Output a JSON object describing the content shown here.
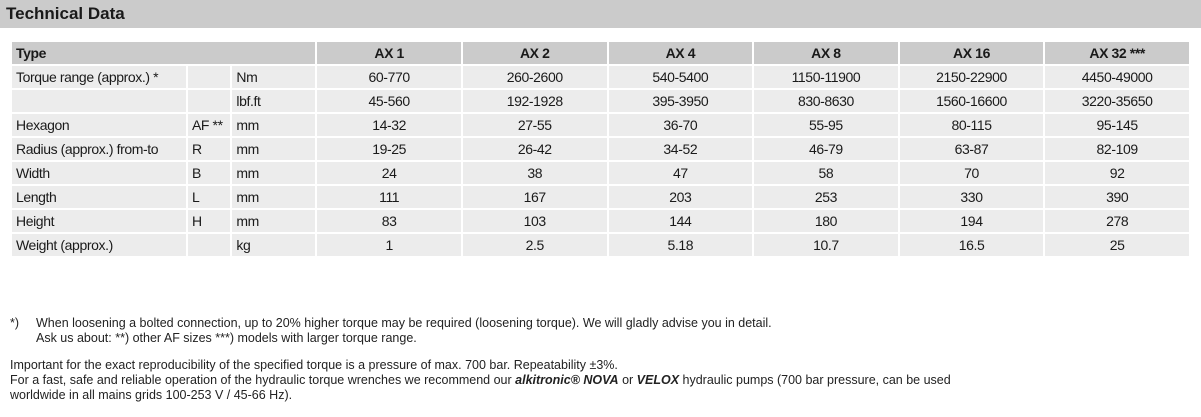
{
  "title": "Technical Data",
  "table": {
    "header": {
      "type": "Type",
      "models": [
        "AX 1",
        "AX 2",
        "AX 4",
        "AX 8",
        "AX 16",
        "AX 32 ***"
      ]
    },
    "rows": [
      {
        "label": "Torque range (approx.) *",
        "sym": "",
        "unit": "Nm",
        "values": [
          "60-770",
          "260-2600",
          "540-5400",
          "1150-11900",
          "2150-22900",
          "4450-49000"
        ]
      },
      {
        "label": "",
        "sym": "",
        "unit": "lbf.ft",
        "values": [
          "45-560",
          "192-1928",
          "395-3950",
          "830-8630",
          "1560-16600",
          "3220-35650"
        ]
      },
      {
        "label": "Hexagon",
        "sym": "AF **",
        "unit": "mm",
        "values": [
          "14-32",
          "27-55",
          "36-70",
          "55-95",
          "80-115",
          "95-145"
        ]
      },
      {
        "label": "Radius (approx.) from-to",
        "sym": "R",
        "unit": "mm",
        "values": [
          "19-25",
          "26-42",
          "34-52",
          "46-79",
          "63-87",
          "82-109"
        ]
      },
      {
        "label": "Width",
        "sym": "B",
        "unit": "mm",
        "values": [
          "24",
          "38",
          "47",
          "58",
          "70",
          "92"
        ]
      },
      {
        "label": "Length",
        "sym": "L",
        "unit": "mm",
        "values": [
          "111",
          "167",
          "203",
          "253",
          "330",
          "390"
        ]
      },
      {
        "label": "Height",
        "sym": "H",
        "unit": "mm",
        "values": [
          "83",
          "103",
          "144",
          "180",
          "194",
          "278"
        ]
      },
      {
        "label": "Weight (approx.)",
        "sym": "",
        "unit": "kg",
        "values": [
          "1",
          "2.5",
          "5.18",
          "10.7",
          "16.5",
          "25"
        ]
      }
    ]
  },
  "footnotes": {
    "star_marker": "*)",
    "star_text": "When loosening a bolted connection, up to 20% higher torque may be required (loosening torque). We will gladly advise you in detail.",
    "ask_text": "Ask us about:  **) other AF sizes   ***) models with larger torque range.",
    "reproducibility": "Important for the exact reproducibility of the specified torque is a pressure of max. 700 bar. Repeatability ±3%.",
    "pumps_pre": "For a fast, safe and reliable operation of the hydraulic torque wrenches we recommend our ",
    "pumps_brand1": "alkitronic® NOVA",
    "pumps_mid": " or ",
    "pumps_brand2": "VELOX",
    "pumps_post": "  hydraulic pumps (700 bar pressure, can be used",
    "pumps_line2": "worldwide in all mains grids 100-253 V / 45-66 Hz)."
  }
}
